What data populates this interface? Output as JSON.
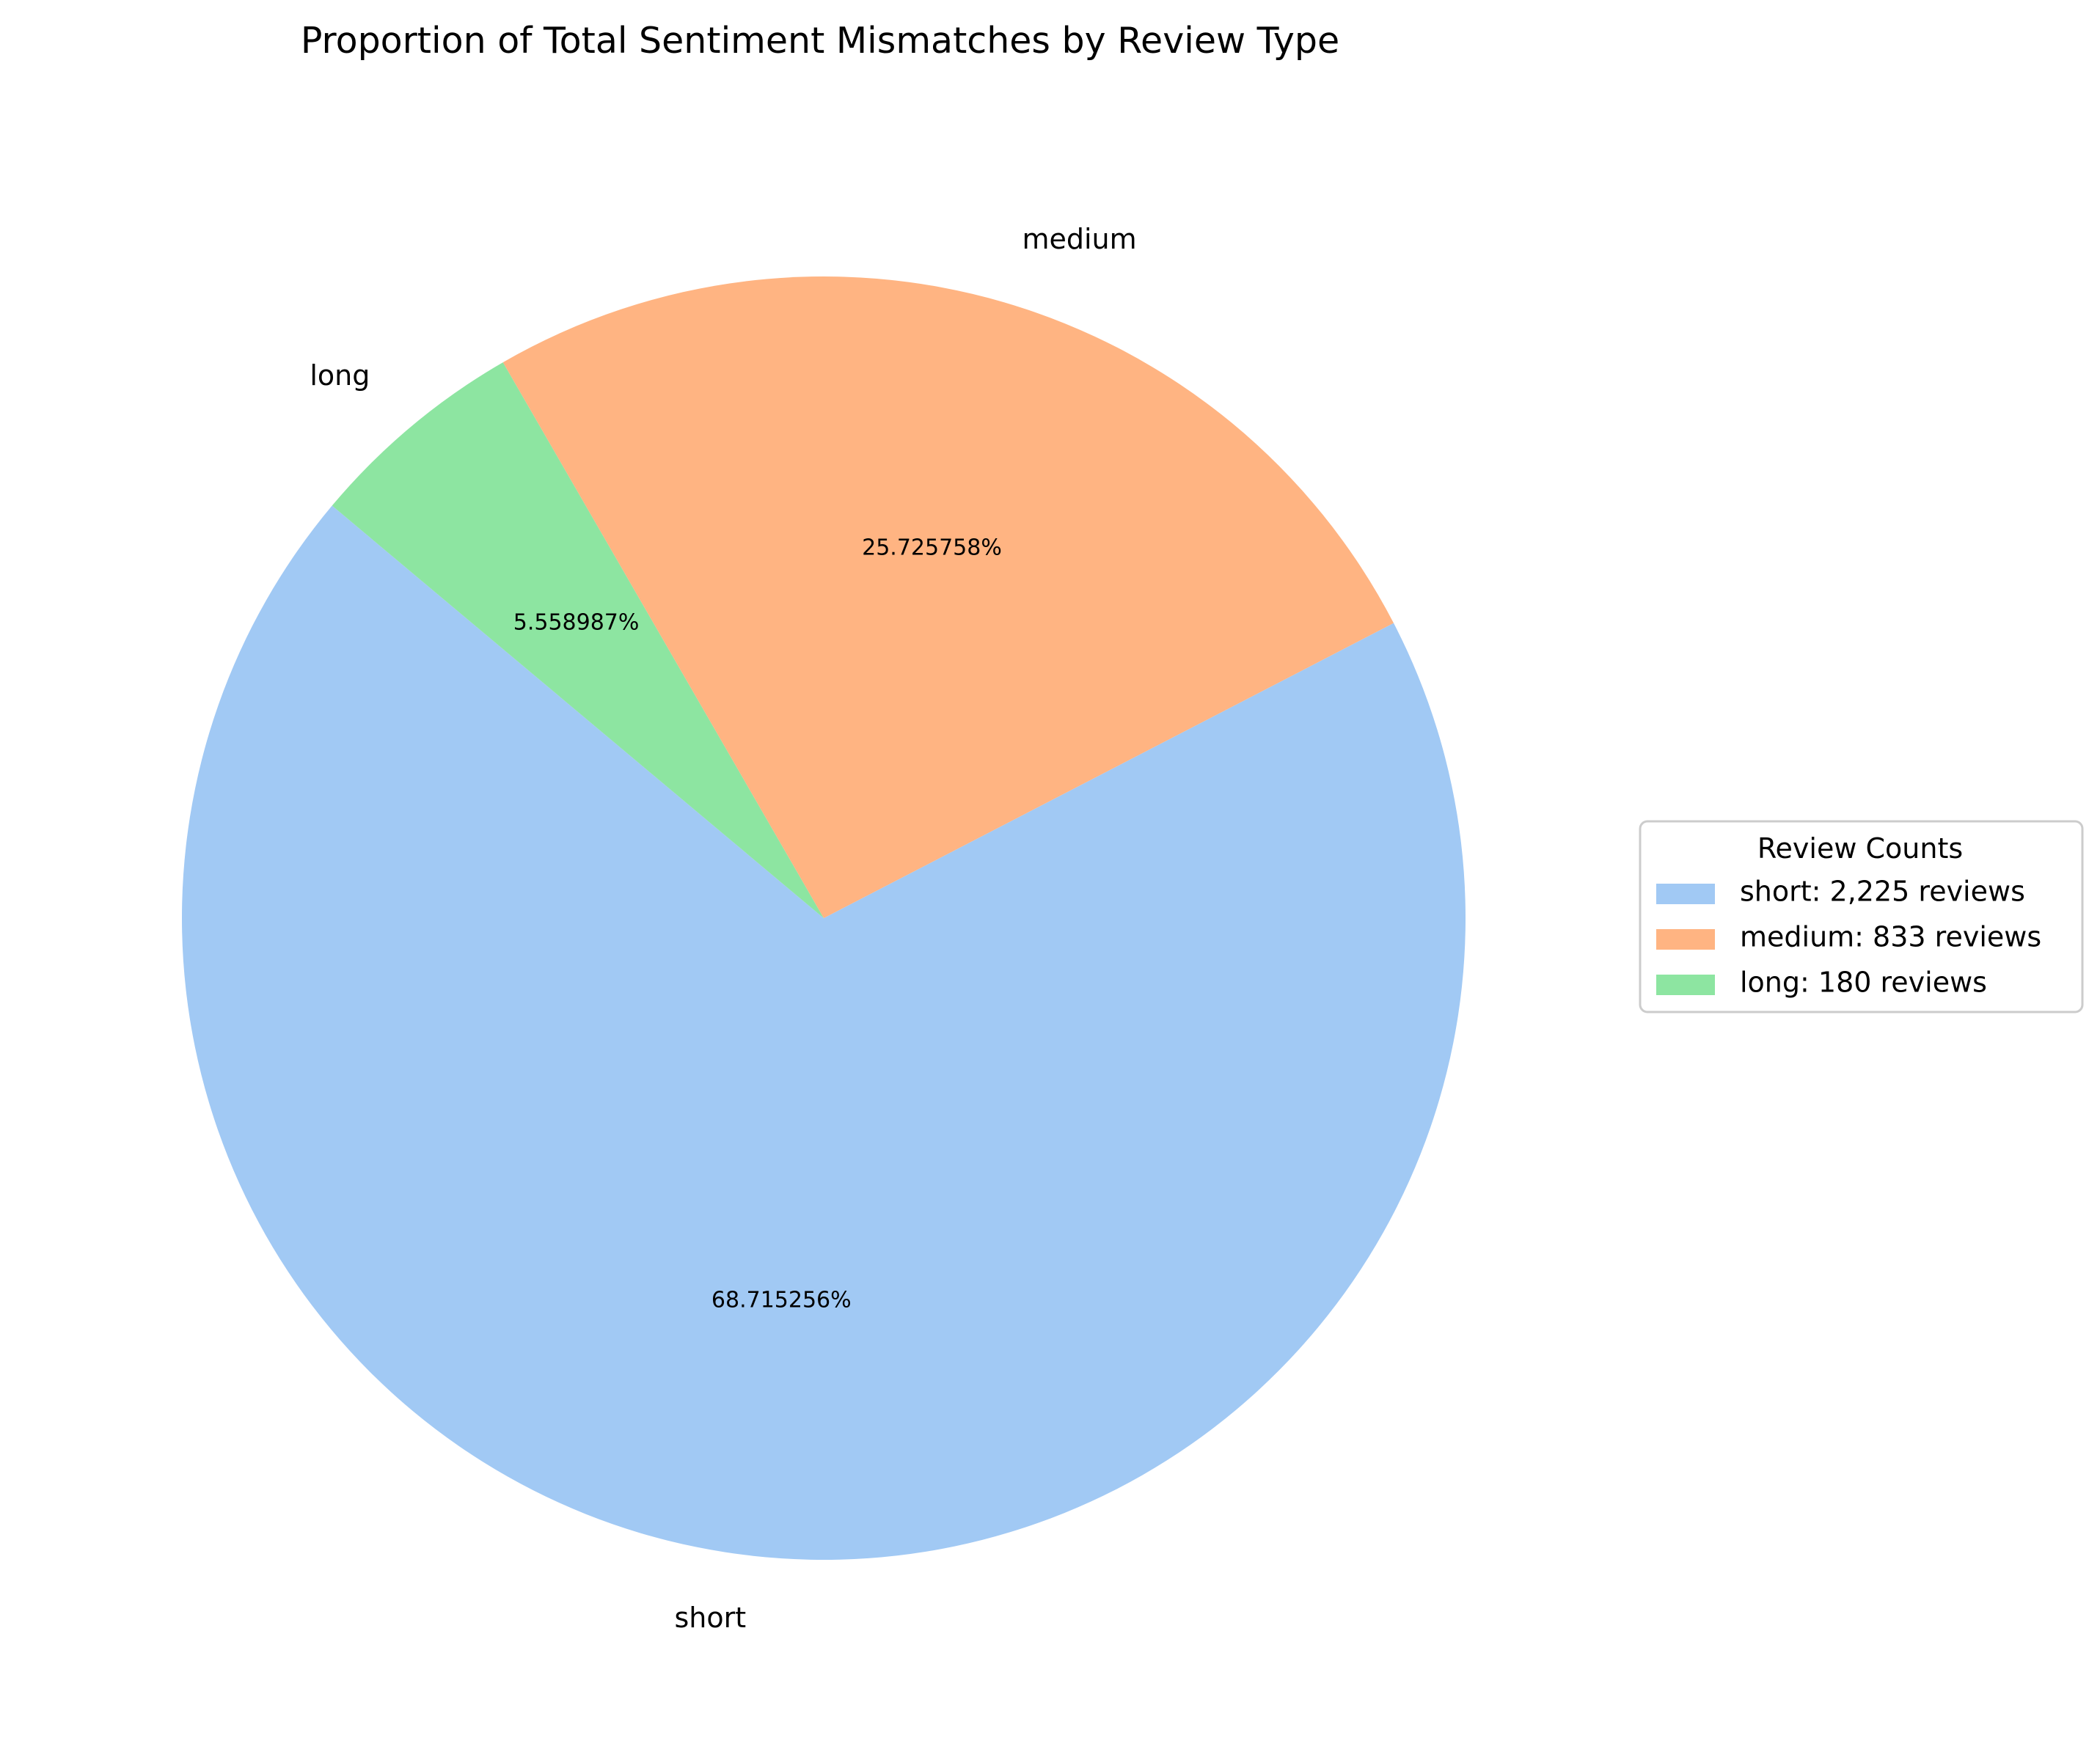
{
  "chart_data": {
    "type": "pie",
    "title": "Proportion of Total Sentiment Mismatches by Review Type",
    "categories": [
      "short",
      "medium",
      "long"
    ],
    "values": [
      2225,
      833,
      180
    ],
    "percent_labels": [
      "68.715256%",
      "25.725758%",
      "5.558987%"
    ],
    "colors": [
      "#a1c9f4",
      "#ffb482",
      "#8de5a1"
    ],
    "start_angle_deg": 140,
    "legend": {
      "title": "Review Counts",
      "placement": "right",
      "entries": [
        "short: 2,225 reviews",
        "medium: 833 reviews",
        "long: 180 reviews"
      ]
    }
  }
}
